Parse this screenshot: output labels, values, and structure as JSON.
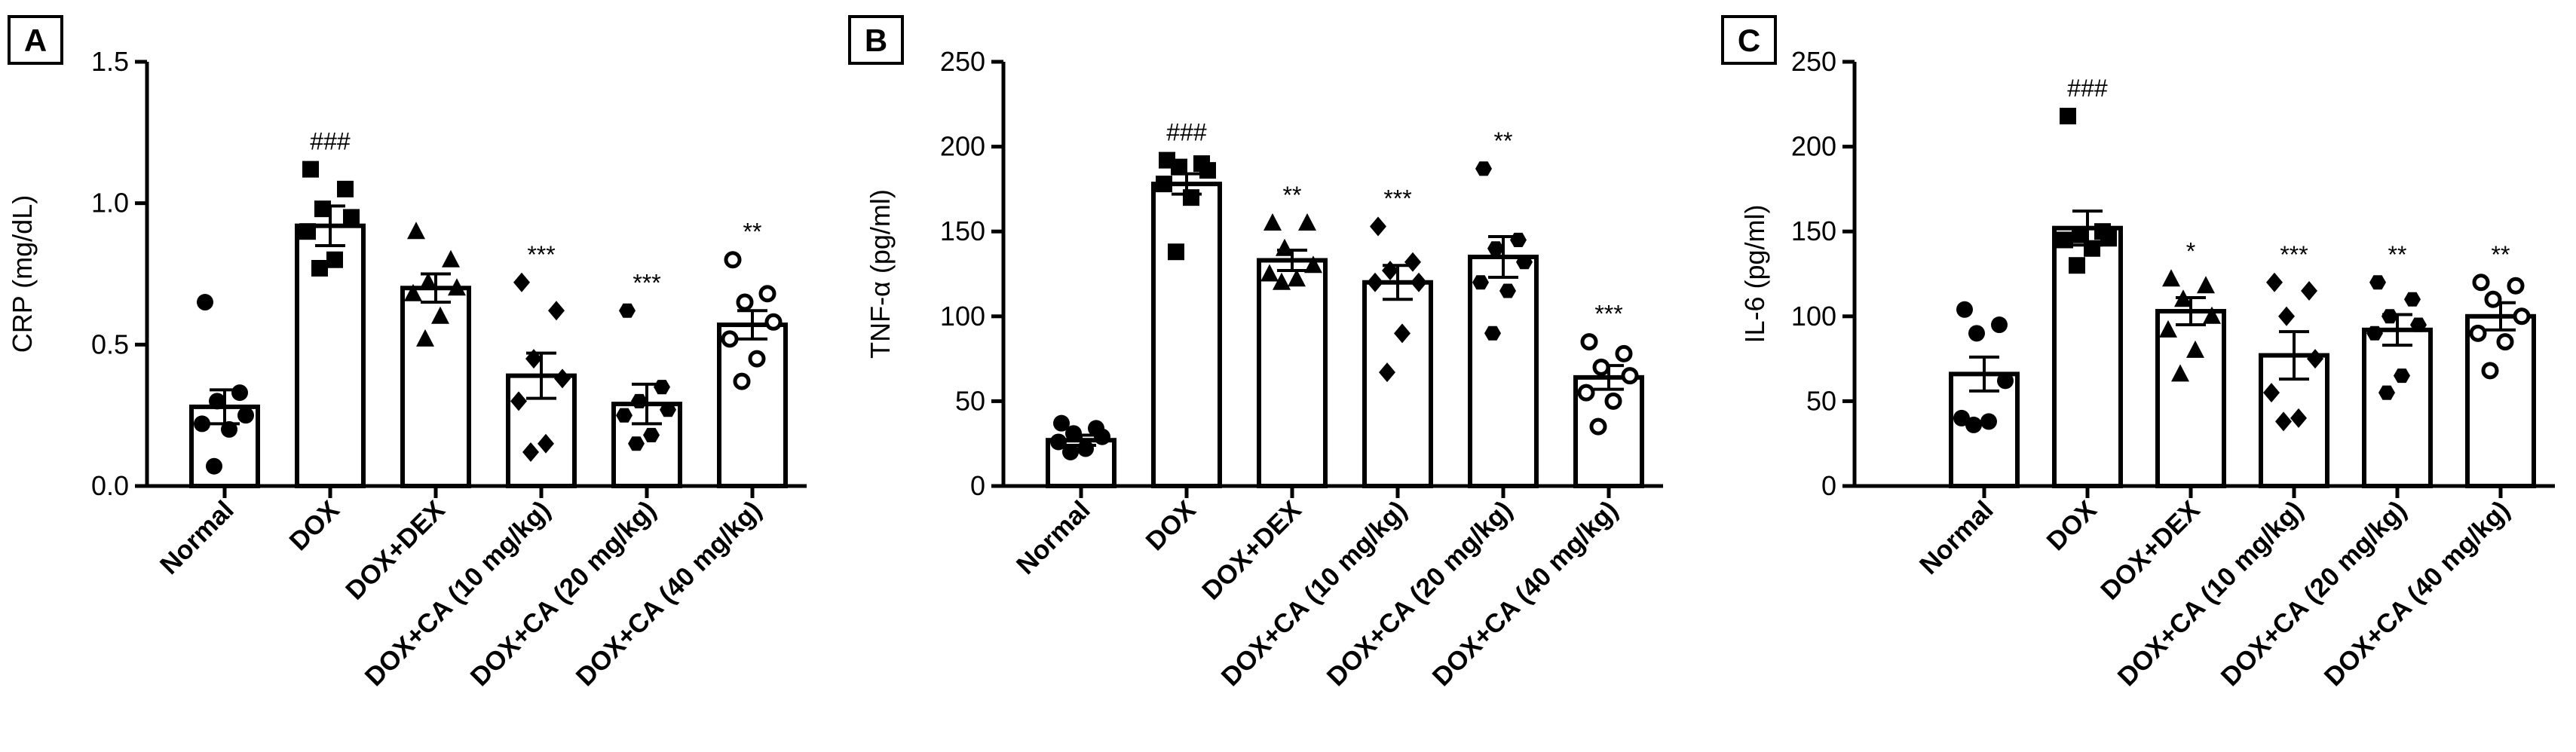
{
  "chart_data": [
    {
      "type": "bar",
      "panel_label": "A",
      "ylabel": "CRP (mg/dL)",
      "ylim": [
        0,
        1.5
      ],
      "yticks": [
        0.0,
        0.5,
        1.0,
        1.5
      ],
      "ytick_labels": [
        "0.0",
        "0.5",
        "1.0",
        "1.5"
      ],
      "categories": [
        "Normal",
        "DOX",
        "DOX+DEX",
        "DOX+CA (10 mg/kg)",
        "DOX+CA (20 mg/kg)",
        "DOX+CA (40 mg/kg)"
      ],
      "values": [
        0.28,
        0.92,
        0.7,
        0.39,
        0.29,
        0.57
      ],
      "sem": [
        0.06,
        0.07,
        0.05,
        0.08,
        0.07,
        0.05
      ],
      "markers": [
        "circle",
        "square",
        "triangle",
        "diamond",
        "hexagon",
        "open-circle"
      ],
      "points": [
        [
          0.65,
          0.33,
          0.3,
          0.25,
          0.22,
          0.2,
          0.07
        ],
        [
          1.12,
          1.05,
          0.98,
          0.95,
          0.9,
          0.8,
          0.77
        ],
        [
          0.9,
          0.8,
          0.72,
          0.7,
          0.68,
          0.6,
          0.52
        ],
        [
          0.72,
          0.62,
          0.45,
          0.38,
          0.3,
          0.15,
          0.12
        ],
        [
          0.62,
          0.35,
          0.3,
          0.27,
          0.25,
          0.18,
          0.15
        ],
        [
          0.8,
          0.68,
          0.65,
          0.58,
          0.52,
          0.45,
          0.37
        ]
      ],
      "annotations": [
        "",
        "###",
        "",
        "***",
        "***",
        "**"
      ]
    },
    {
      "type": "bar",
      "panel_label": "B",
      "ylabel": "TNF-α (pg/ml)",
      "ylim": [
        0,
        250
      ],
      "yticks": [
        0,
        50,
        100,
        150,
        200,
        250
      ],
      "ytick_labels": [
        "0",
        "50",
        "100",
        "150",
        "200",
        "250"
      ],
      "categories": [
        "Normal",
        "DOX",
        "DOX+DEX",
        "DOX+CA (10 mg/kg)",
        "DOX+CA (20 mg/kg)",
        "DOX+CA (40 mg/kg)"
      ],
      "values": [
        27,
        178,
        133,
        120,
        135,
        64
      ],
      "sem": [
        3,
        6,
        6,
        10,
        12,
        7
      ],
      "markers": [
        "circle",
        "square",
        "triangle",
        "diamond",
        "hexagon",
        "open-circle"
      ],
      "points": [
        [
          37,
          34,
          31,
          29,
          26,
          22,
          20
        ],
        [
          192,
          190,
          188,
          186,
          178,
          170,
          138
        ],
        [
          155,
          155,
          140,
          130,
          125,
          122,
          120
        ],
        [
          153,
          132,
          127,
          120,
          120,
          90,
          67
        ],
        [
          187,
          145,
          140,
          132,
          120,
          115,
          90
        ],
        [
          85,
          78,
          70,
          65,
          55,
          50,
          35
        ]
      ],
      "annotations": [
        "",
        "###",
        "**",
        "***",
        "**",
        "***"
      ]
    },
    {
      "type": "bar",
      "panel_label": "C",
      "ylabel": "IL-6 (pg/ml)",
      "ylim": [
        0,
        250
      ],
      "yticks": [
        0,
        50,
        100,
        150,
        200,
        250
      ],
      "ytick_labels": [
        "0",
        "50",
        "100",
        "150",
        "200",
        "250"
      ],
      "categories": [
        "Normal",
        "DOX",
        "DOX+DEX",
        "DOX+CA (10 mg/kg)",
        "DOX+CA (20 mg/kg)",
        "DOX+CA (40 mg/kg)"
      ],
      "values": [
        66,
        152,
        103,
        77,
        92,
        100
      ],
      "sem": [
        10,
        10,
        8,
        14,
        9,
        8
      ],
      "markers": [
        "circle",
        "square",
        "triangle",
        "diamond",
        "hexagon",
        "open-circle"
      ],
      "points": [
        [
          104,
          95,
          90,
          62,
          40,
          38,
          36
        ],
        [
          218,
          150,
          148,
          146,
          145,
          140,
          130
        ],
        [
          122,
          118,
          110,
          100,
          92,
          80,
          66
        ],
        [
          120,
          115,
          100,
          75,
          55,
          40,
          38
        ],
        [
          120,
          110,
          100,
          95,
          90,
          65,
          55
        ],
        [
          120,
          118,
          110,
          100,
          90,
          85,
          68
        ]
      ],
      "annotations": [
        "",
        "###",
        "*",
        "***",
        "**",
        "**"
      ]
    }
  ]
}
